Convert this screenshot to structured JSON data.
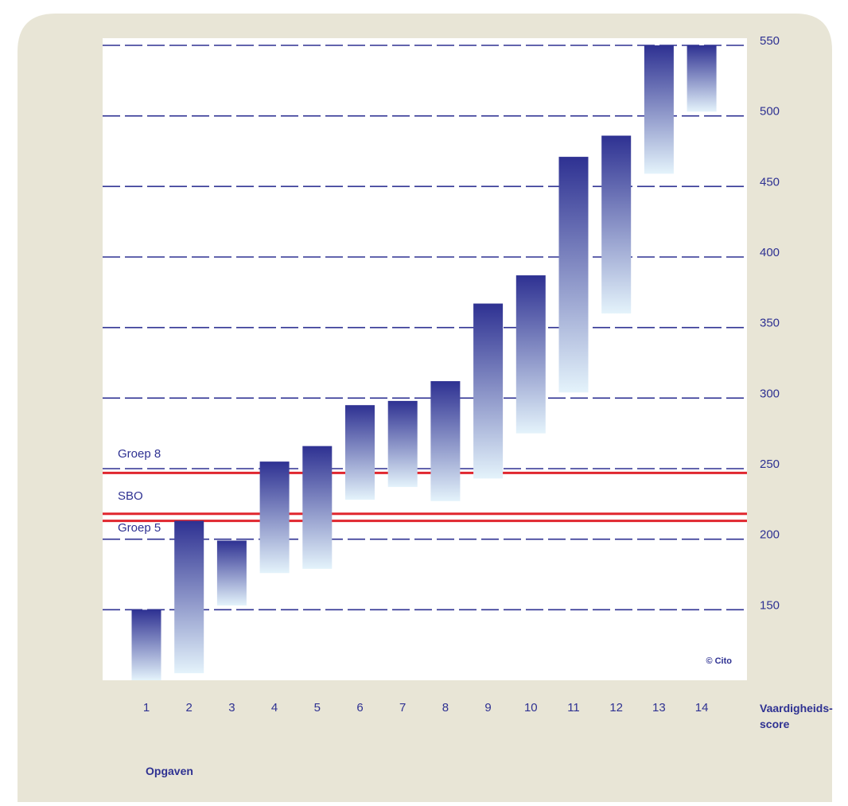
{
  "chart_data": {
    "type": "bar",
    "bar_kind": "floating-range",
    "categories": [
      "1",
      "2",
      "3",
      "4",
      "5",
      "6",
      "7",
      "8",
      "9",
      "10",
      "11",
      "12",
      "13",
      "14"
    ],
    "series": [
      {
        "ranges": [
          [
            100,
            150
          ],
          [
            105,
            213
          ],
          [
            153,
            199
          ],
          [
            176,
            255
          ],
          [
            179,
            266
          ],
          [
            228,
            295
          ],
          [
            237,
            298
          ],
          [
            227,
            312
          ],
          [
            243,
            367
          ],
          [
            275,
            387
          ],
          [
            304,
            471
          ],
          [
            360,
            486
          ],
          [
            459,
            550
          ],
          [
            503,
            550
          ]
        ]
      }
    ],
    "reference_lines": [
      {
        "label": "Groep 8",
        "value": 247
      },
      {
        "label": "SBO",
        "value": 218
      },
      {
        "label": "Groep 5",
        "value": 213
      }
    ],
    "y_ticks": [
      150,
      200,
      250,
      300,
      350,
      400,
      450,
      500,
      550
    ],
    "ylim": [
      100,
      550
    ],
    "xlabel": "Opgaven",
    "ylabel_lines": [
      "Vaardigheids-",
      "score"
    ],
    "copyright": "© Cito",
    "grid": true,
    "colors": {
      "frame": "#e8e5d6",
      "plot_bg": "#ffffff",
      "grid": "#2e3192",
      "bar_top": "#2e3192",
      "bar_bottom": "#e4f3fb",
      "reference": "#e0262e",
      "text": "#2e3192"
    }
  }
}
